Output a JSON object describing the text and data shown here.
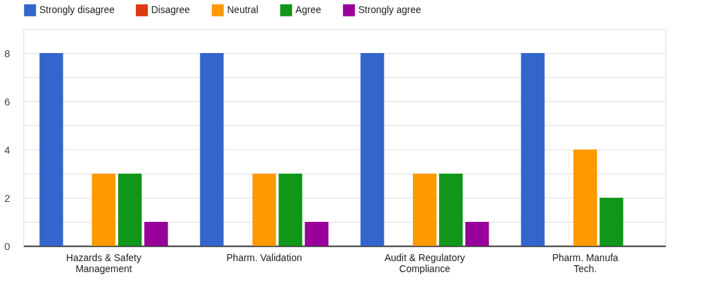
{
  "chart_data": {
    "type": "bar",
    "categories": [
      "Hazards & Safety\nManagement",
      "Pharm. Validation",
      "Audit & Regulatory\nCompliance",
      "Pharm. Manufa\nTech."
    ],
    "series": [
      {
        "name": "Strongly disagree",
        "color": "#3366cc",
        "values": [
          8,
          8,
          8,
          8
        ]
      },
      {
        "name": "Disagree",
        "color": "#dc3912",
        "values": [
          0,
          0,
          0,
          0
        ]
      },
      {
        "name": "Neutral",
        "color": "#ff9900",
        "values": [
          3,
          3,
          3,
          4
        ]
      },
      {
        "name": "Agree",
        "color": "#109618",
        "values": [
          3,
          3,
          3,
          2
        ]
      },
      {
        "name": "Strongly agree",
        "color": "#990099",
        "values": [
          1,
          1,
          1,
          null
        ]
      }
    ],
    "ylim": [
      0,
      9
    ],
    "yticks": [
      0,
      {
        "value": 1,
        "label": null
      },
      2,
      {
        "value": 3,
        "label": null
      },
      4,
      {
        "value": 5,
        "label": null
      },
      6,
      {
        "value": 7,
        "label": null
      },
      8,
      {
        "value": 9,
        "label": null
      }
    ],
    "grid": "y",
    "legend": "top"
  }
}
